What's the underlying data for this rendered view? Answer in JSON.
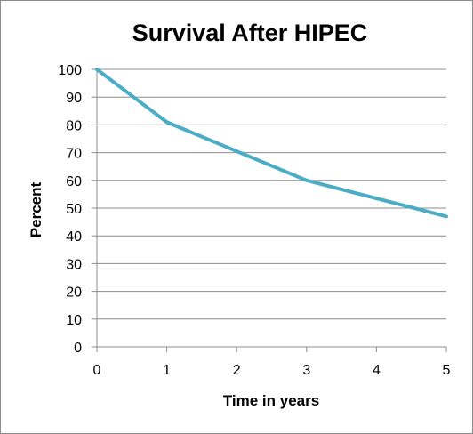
{
  "chart_data": {
    "type": "line",
    "title": "Survival After HIPEC",
    "xlabel": "Time in years",
    "ylabel": "Percent",
    "x": [
      0,
      1,
      2,
      3,
      4,
      5
    ],
    "series": [
      {
        "values": [
          100,
          81,
          70.5,
          60,
          53.5,
          47
        ]
      }
    ],
    "xlim": [
      0,
      5
    ],
    "ylim": [
      0,
      100
    ],
    "x_ticks": [
      "0",
      "1",
      "2",
      "3",
      "4",
      "5"
    ],
    "y_ticks": [
      "0",
      "10",
      "20",
      "30",
      "40",
      "50",
      "60",
      "70",
      "80",
      "90",
      "100"
    ],
    "grid": "horizontal",
    "legend": "none",
    "colors": {
      "line": "#4bacc6",
      "grid": "#8c8c8c",
      "axis": "#8c8c8c",
      "border": "#8c8c8c"
    }
  }
}
